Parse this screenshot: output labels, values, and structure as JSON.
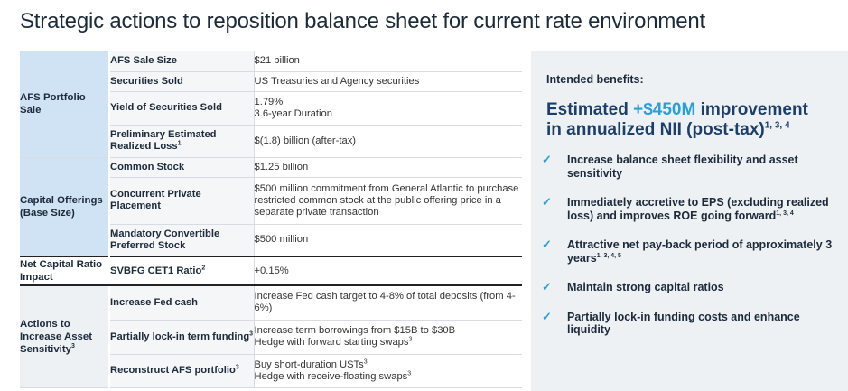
{
  "title": "Strategic actions to reposition balance sheet for current rate environment",
  "table": {
    "afs": {
      "group": "AFS Portfolio Sale",
      "rows": [
        {
          "label": "AFS Sale Size",
          "value": "$21 billion"
        },
        {
          "label": "Securities Sold",
          "value": "US Treasuries and Agency securities"
        },
        {
          "label": "Yield of Securities Sold",
          "value1": "1.79%",
          "value2": "3.6-year Duration"
        },
        {
          "label": "Preliminary Estimated Realized Loss",
          "label_sup": "1",
          "value": "$(1.8) billion (after-tax)"
        }
      ]
    },
    "capital": {
      "group": "Capital Offerings (Base Size)",
      "rows": [
        {
          "label": "Common Stock",
          "value": "$1.25 billion"
        },
        {
          "label": "Concurrent Private Placement",
          "value": "$500 million commitment from General Atlantic to purchase restricted common stock at the public offering price in a separate private transaction"
        },
        {
          "label": "Mandatory Convertible Preferred Stock",
          "value": "$500 million"
        }
      ]
    },
    "netcap": {
      "group": "Net Capital Ratio Impact",
      "rows": [
        {
          "label": "SVBFG CET1 Ratio",
          "label_sup": "2",
          "value": "+0.15%"
        }
      ]
    },
    "actions": {
      "group": "Actions to Increase Asset Sensitivity",
      "group_sup": "3",
      "rows": [
        {
          "label": "Increase Fed cash",
          "value": "Increase Fed cash target to 4-8% of total deposits (from 4-6%)"
        },
        {
          "label": "Partially lock-in term funding",
          "label_sup": "3",
          "value1": "Increase term borrowings from $15B to $30B",
          "value2": "Hedge with forward starting swaps",
          "value2_sup": "3"
        },
        {
          "label": "Reconstruct AFS portfolio",
          "label_sup": "3",
          "value1": "Buy short-duration USTs",
          "value1_sup": "3",
          "value2": "Hedge with receive-floating swaps",
          "value2_sup": "3"
        }
      ]
    }
  },
  "side": {
    "header": "Intended benefits:",
    "big_pre": "Estimated ",
    "big_highlight": "+$450M",
    "big_post1": " improvement",
    "big_post2": "in annualized NII (post-tax)",
    "big_sup": "1, 3, 4",
    "check_icon": "✓",
    "benefits": [
      {
        "text": "Increase balance sheet flexibility and asset sensitivity",
        "sup": ""
      },
      {
        "text": "Immediately accretive to EPS (excluding realized loss) and improves ROE going forward",
        "sup": "1, 3, 4"
      },
      {
        "text": "Attractive net pay-back period of approximately 3 years",
        "sup": "1, 3, 4, 5"
      },
      {
        "text": "Maintain strong capital ratios",
        "sup": ""
      },
      {
        "text": "Partially lock-in funding costs and enhance liquidity",
        "sup": ""
      }
    ]
  },
  "colors": {
    "accent": "#2aa0d8",
    "navy": "#1c3f6a",
    "group_blue": "#cfe3f5",
    "panel_grey": "#eef1f4"
  }
}
